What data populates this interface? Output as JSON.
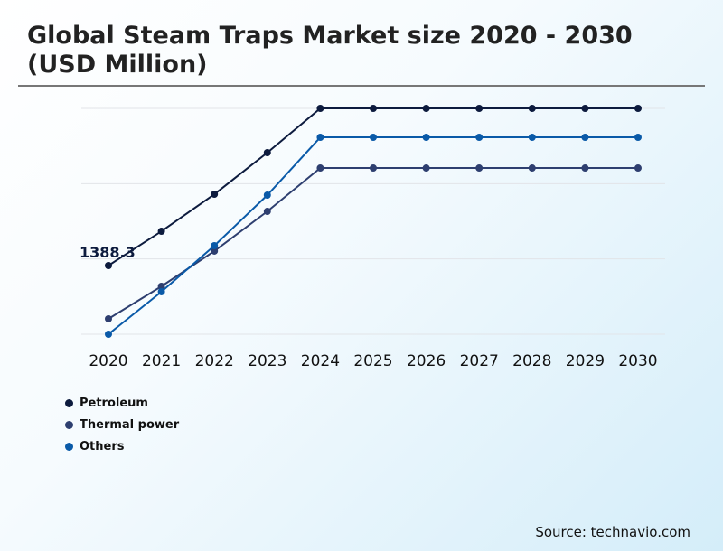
{
  "title": "Global Steam Traps Market size 2020 - 2030 (USD Million)",
  "source": "Source: technavio.com",
  "chart_data": {
    "type": "line",
    "title": "Global Steam Traps Market size 2020 - 2030 (USD Million)",
    "x": [
      "2020",
      "2021",
      "2022",
      "2023",
      "2024",
      "2025",
      "2026",
      "2027",
      "2028",
      "2029",
      "2030"
    ],
    "ylim": [
      0,
      4567
    ],
    "grid": true,
    "legend": "bottom-left",
    "annotations": [
      {
        "series": "Petroleum",
        "x": "2020",
        "label": "1388.3"
      }
    ],
    "series": [
      {
        "name": "Petroleum",
        "color": "#0d1b3e",
        "values": [
          1388.3,
          2082,
          2831,
          3672,
          4567,
          4567,
          4567,
          4567,
          4567,
          4567,
          4567
        ]
      },
      {
        "name": "Thermal power",
        "color": "#2e3f70",
        "values": [
          311,
          968,
          1681,
          2484,
          3361,
          3361,
          3361,
          3361,
          3361,
          3361,
          3361
        ]
      },
      {
        "name": "Others",
        "color": "#0a5aa8",
        "values": [
          0,
          859,
          1790,
          2813,
          3982,
          3982,
          3982,
          3982,
          3982,
          3982,
          3982
        ]
      }
    ]
  }
}
